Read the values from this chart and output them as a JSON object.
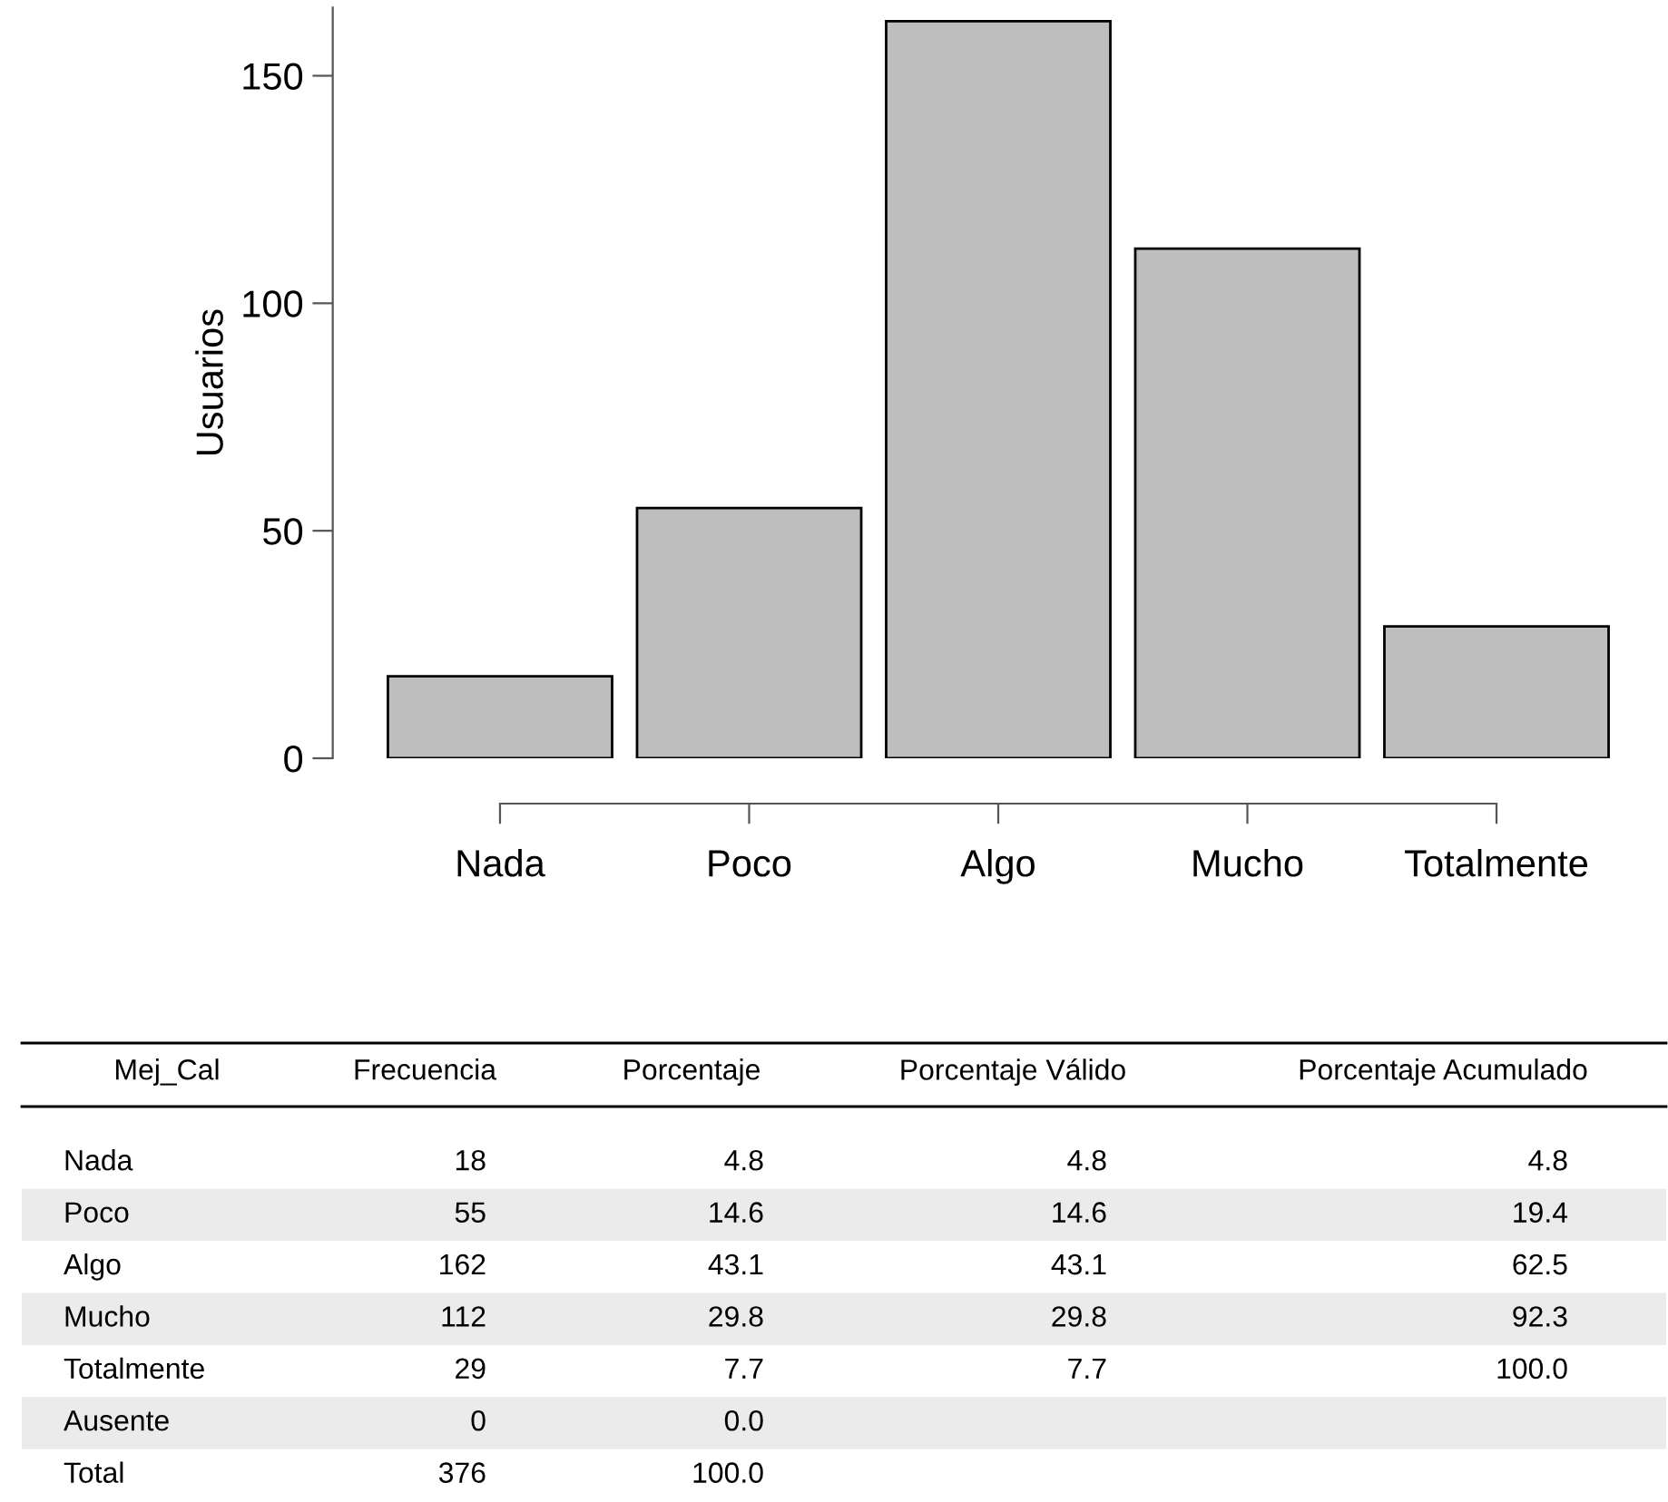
{
  "chart_data": [
    {
      "type": "bar",
      "ylabel": "Usuarios",
      "categories": [
        "Nada",
        "Poco",
        "Algo",
        "Mucho",
        "Totalmente"
      ],
      "values": [
        18,
        55,
        162,
        112,
        29
      ],
      "color": "#bebebe",
      "ylim": [
        0,
        165
      ],
      "yticks": [
        0,
        50,
        100,
        150
      ],
      "grid": false,
      "legend": false
    },
    {
      "type": "other",
      "categories": [
        "Mej_Cal",
        "Frecuencia",
        "Porcentaje",
        "Porcentaje Válido",
        "Porcentaje Acumulado"
      ],
      "y_categories": [
        "Nada",
        "Poco",
        "Algo",
        "Mucho",
        "Totalmente",
        "Ausente",
        "Total"
      ],
      "cell_labels": [
        [
          "18",
          "4.8",
          "4.8",
          "4.8"
        ],
        [
          "55",
          "14.6",
          "14.6",
          "19.4"
        ],
        [
          "162",
          "43.1",
          "43.1",
          "62.5"
        ],
        [
          "112",
          "29.8",
          "29.8",
          "92.3"
        ],
        [
          "29",
          "7.7",
          "7.7",
          "100.0"
        ],
        [
          "0",
          "0.0",
          null,
          null
        ],
        [
          "376",
          "100.0",
          null,
          null
        ]
      ]
    }
  ]
}
